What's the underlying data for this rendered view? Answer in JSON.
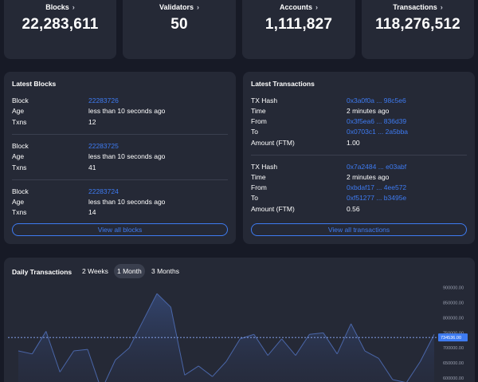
{
  "stats": [
    {
      "label": "Blocks",
      "value": "22,283,611"
    },
    {
      "label": "Validators",
      "value": "50"
    },
    {
      "label": "Accounts",
      "value": "1,111,827"
    },
    {
      "label": "Transactions",
      "value": "118,276,512"
    }
  ],
  "latest_blocks": {
    "title": "Latest Blocks",
    "items": [
      {
        "block_label": "Block",
        "block": "22283726",
        "age_label": "Age",
        "age": "less than 10 seconds ago",
        "txns_label": "Txns",
        "txns": "12"
      },
      {
        "block_label": "Block",
        "block": "22283725",
        "age_label": "Age",
        "age": "less than 10 seconds ago",
        "txns_label": "Txns",
        "txns": "41"
      },
      {
        "block_label": "Block",
        "block": "22283724",
        "age_label": "Age",
        "age": "less than 10 seconds ago",
        "txns_label": "Txns",
        "txns": "14"
      }
    ],
    "view_all": "View all blocks"
  },
  "latest_transactions": {
    "title": "Latest Transactions",
    "items": [
      {
        "hash_label": "TX Hash",
        "hash": "0x3a0f0a ... 98c5e6",
        "time_label": "Time",
        "time": "2 minutes ago",
        "from_label": "From",
        "from": "0x3f5ea6 ... 836d39",
        "to_label": "To",
        "to": "0x0703c1 ... 2a5bba",
        "amount_label": "Amount (FTM)",
        "amount": "1.00"
      },
      {
        "hash_label": "TX Hash",
        "hash": "0x7a2484 ... e03abf",
        "time_label": "Time",
        "time": "2 minutes ago",
        "from_label": "From",
        "from": "0xbdaf17 ... 4ee572",
        "to_label": "To",
        "to": "0xf51277 ... b3495e",
        "amount_label": "Amount (FTM)",
        "amount": "0.56"
      }
    ],
    "view_all": "View all transactions"
  },
  "daily_chart": {
    "title": "Daily Transactions",
    "tabs": [
      "2 Weeks",
      "1 Month",
      "3 Months"
    ],
    "active_tab": "1 Month",
    "current_value_label": "734536.00"
  },
  "colors": {
    "accent": "#3e7bf2",
    "card": "#252936",
    "background": "#171a26"
  },
  "chart_data": {
    "type": "area",
    "title": "Daily Transactions",
    "y_ticks": [
      "900000.00",
      "850000.00",
      "800000.00",
      "750000.00",
      "700000.00",
      "650000.00",
      "600000.00",
      "550000.00"
    ],
    "ylim": [
      550000,
      920000
    ],
    "reference_line": 734536,
    "values": [
      690000,
      680000,
      755000,
      620000,
      690000,
      695000,
      560000,
      660000,
      700000,
      790000,
      880000,
      835000,
      610000,
      640000,
      605000,
      655000,
      730000,
      745000,
      675000,
      730000,
      675000,
      745000,
      750000,
      680000,
      780000,
      690000,
      665000,
      595000,
      585000,
      655000,
      745000
    ],
    "grid": false,
    "legend": "none"
  }
}
